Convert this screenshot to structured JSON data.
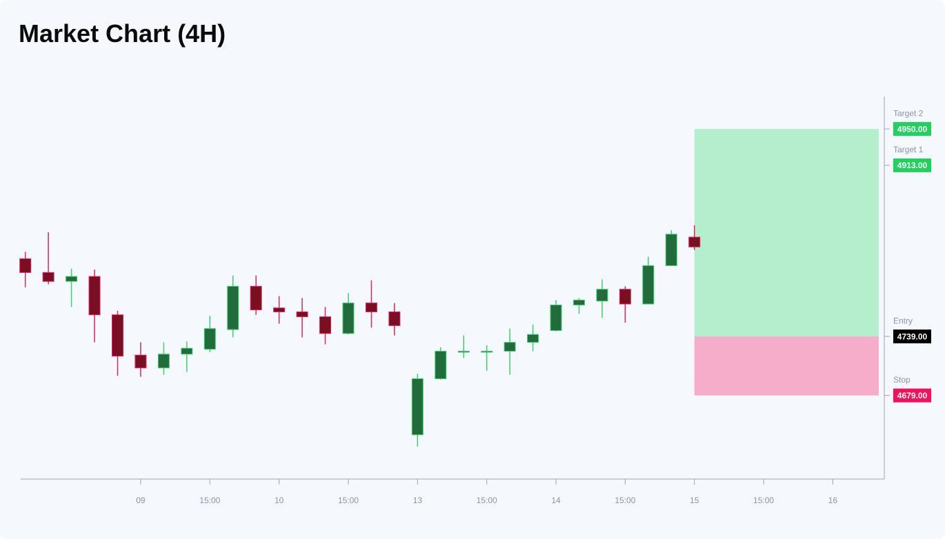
{
  "chart_data": {
    "type": "candlestick",
    "title": "Market Chart (4H)",
    "up_color": "#226b3b",
    "up_wick": "#3ecf6e",
    "down_color": "#7a0f22",
    "down_wick": "#e0245e",
    "open": [
      4818,
      4804,
      4795,
      4800,
      4761,
      4720,
      4707,
      4721,
      4726,
      4746,
      4790,
      4768,
      4764,
      4759,
      4742,
      4773,
      4764,
      4639,
      4696,
      4723,
      4723,
      4724,
      4733,
      4745,
      4771,
      4775,
      4787,
      4772,
      4811,
      4840
    ],
    "high": [
      4825,
      4845,
      4808,
      4807,
      4765,
      4733,
      4733,
      4734,
      4760,
      4801,
      4801,
      4780,
      4778,
      4769,
      4783,
      4796,
      4773,
      4701,
      4728,
      4740,
      4730,
      4747,
      4751,
      4776,
      4778,
      4797,
      4790,
      4820,
      4847,
      4852
    ],
    "low": [
      4789,
      4792,
      4769,
      4733,
      4699,
      4698,
      4700,
      4703,
      4723,
      4738,
      4761,
      4752,
      4738,
      4731,
      4741,
      4748,
      4740,
      4627,
      4695,
      4717,
      4704,
      4700,
      4724,
      4744,
      4762,
      4758,
      4753,
      4772,
      4811,
      4827
    ],
    "close": [
      4804,
      4795,
      4800,
      4761,
      4719,
      4707,
      4721,
      4727,
      4747,
      4790,
      4766,
      4764,
      4759,
      4742,
      4773,
      4764,
      4750,
      4696,
      4724,
      4724,
      4724,
      4733,
      4741,
      4771,
      4776,
      4787,
      4772,
      4811,
      4843,
      4830
    ],
    "xlim": [
      -0.2,
      37.23
    ],
    "ylim": [
      4594,
      4983
    ],
    "xticks": [
      {
        "value": 5,
        "label": "09"
      },
      {
        "value": 8,
        "label": "15:00"
      },
      {
        "value": 11,
        "label": "10"
      },
      {
        "value": 14,
        "label": "15:00"
      },
      {
        "value": 17,
        "label": "13"
      },
      {
        "value": 20,
        "label": "15:00"
      },
      {
        "value": 23,
        "label": "14"
      },
      {
        "value": 26,
        "label": "15:00"
      },
      {
        "value": 29,
        "label": "15"
      },
      {
        "value": 32,
        "label": "15:00"
      },
      {
        "value": 35,
        "label": "16"
      }
    ],
    "levels": [
      {
        "name": "Target 2",
        "value": 4950,
        "label": "4950.00",
        "color": "#22d05e"
      },
      {
        "name": "Target 1",
        "value": 4913,
        "label": "4913.00",
        "color": "#22d05e"
      },
      {
        "name": "Entry",
        "value": 4739,
        "label": "4739.00",
        "color": "#000000"
      },
      {
        "name": "Stop",
        "value": 4679,
        "label": "4679.00",
        "color": "#f0125a"
      }
    ],
    "profit_color": "#b4eecc",
    "loss_color": "#f5adc9"
  }
}
